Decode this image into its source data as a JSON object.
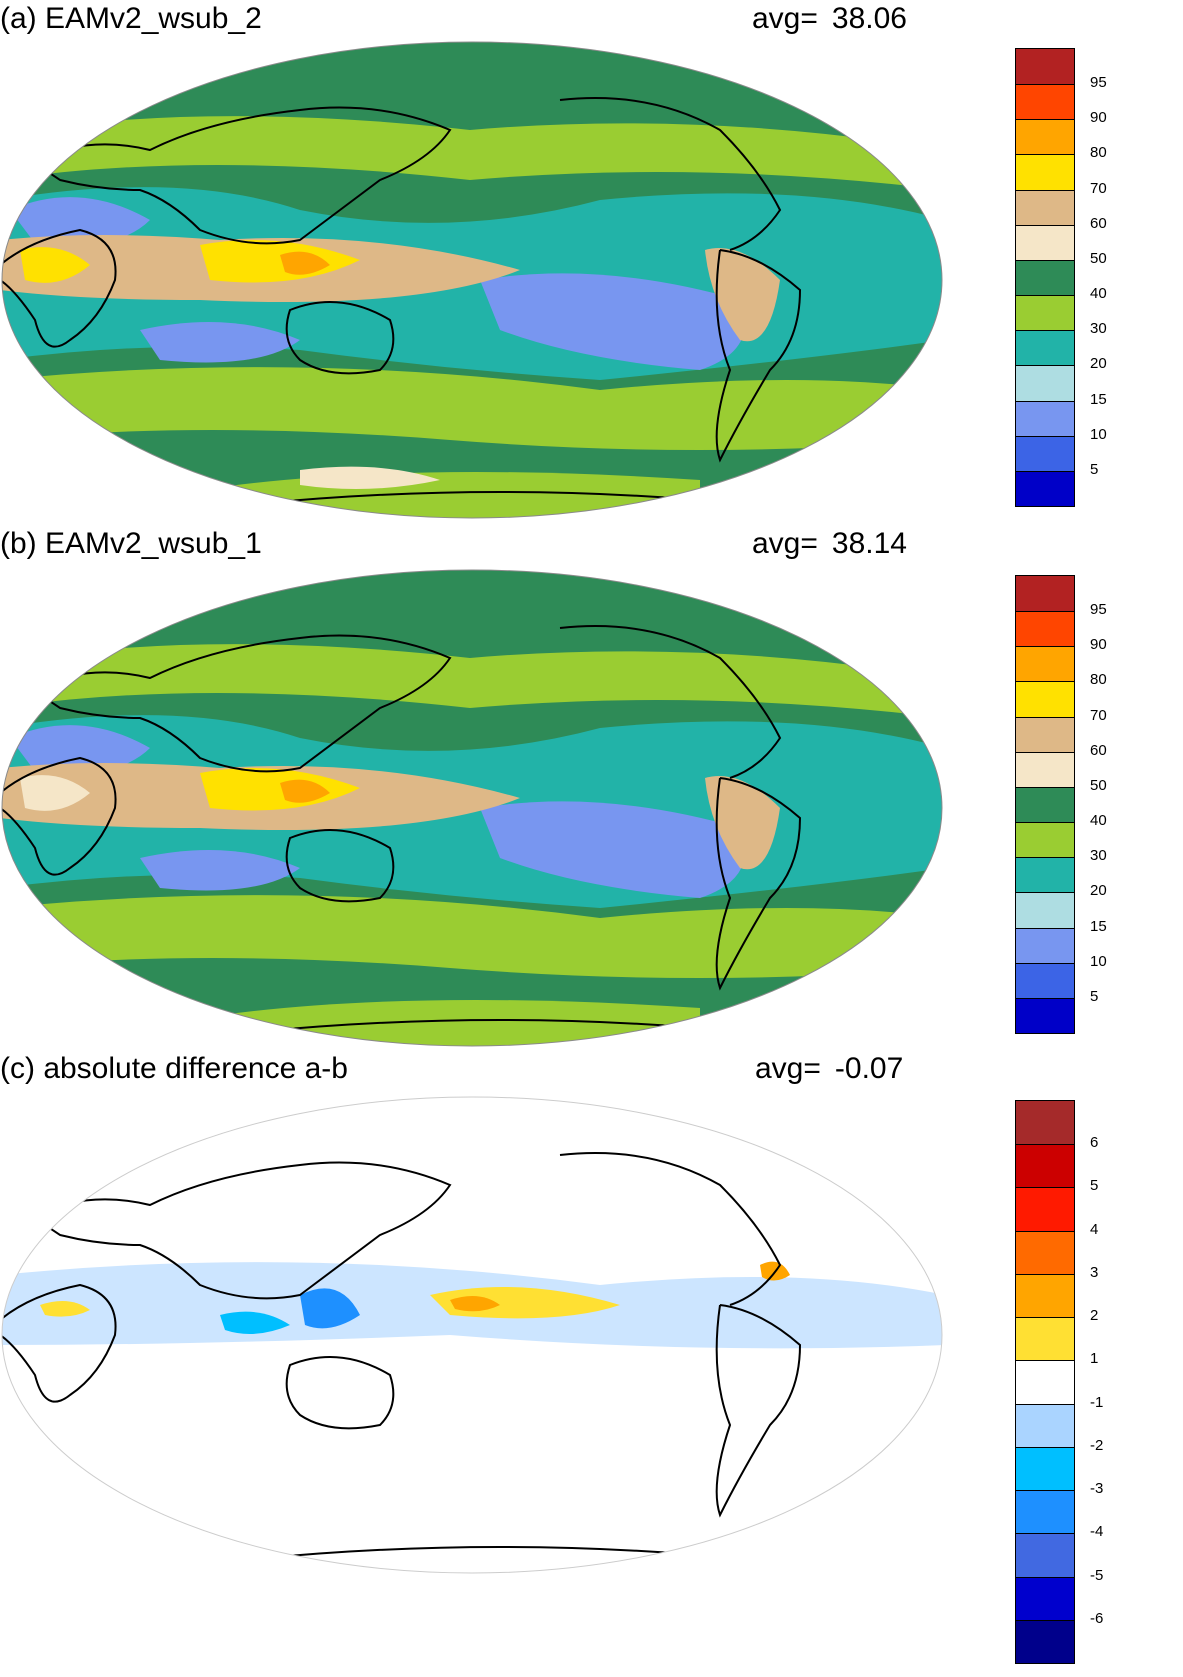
{
  "panels": [
    {
      "id": "a",
      "title": "(a) EAMv2_wsub_2",
      "avg_label": "avg=",
      "avg_value": "38.06",
      "colorbar": {
        "labels": [
          "5",
          "10",
          "15",
          "20",
          "30",
          "40",
          "50",
          "60",
          "70",
          "80",
          "90",
          "95"
        ],
        "colors": [
          "#0000c8",
          "#3c64e6",
          "#7896f0",
          "#aedde2",
          "#22b3a8",
          "#9acd32",
          "#2e8b57",
          "#f5e6c8",
          "#deb887",
          "#ffe100",
          "#ffa500",
          "#ff4500",
          "#b22222"
        ]
      }
    },
    {
      "id": "b",
      "title": "(b) EAMv2_wsub_1",
      "avg_label": "avg=",
      "avg_value": "38.14",
      "colorbar": {
        "labels": [
          "5",
          "10",
          "15",
          "20",
          "30",
          "40",
          "50",
          "60",
          "70",
          "80",
          "90",
          "95"
        ],
        "colors": [
          "#0000c8",
          "#3c64e6",
          "#7896f0",
          "#aedde2",
          "#22b3a8",
          "#9acd32",
          "#2e8b57",
          "#f5e6c8",
          "#deb887",
          "#ffe100",
          "#ffa500",
          "#ff4500",
          "#b22222"
        ]
      }
    },
    {
      "id": "c",
      "title": "(c) absolute difference a-b",
      "avg_label": "avg=",
      "avg_value": "-0.07",
      "colorbar": {
        "labels": [
          "-6",
          "-5",
          "-4",
          "-3",
          "-2",
          "-1",
          "1",
          "2",
          "3",
          "4",
          "5",
          "6"
        ],
        "colors": [
          "#00008b",
          "#0000cd",
          "#4169e1",
          "#1e90ff",
          "#00bfff",
          "#aad4ff",
          "#ffffff",
          "#ffe033",
          "#ffa500",
          "#ff6a00",
          "#ff1a00",
          "#cc0000",
          "#a52a2a"
        ]
      }
    }
  ]
}
